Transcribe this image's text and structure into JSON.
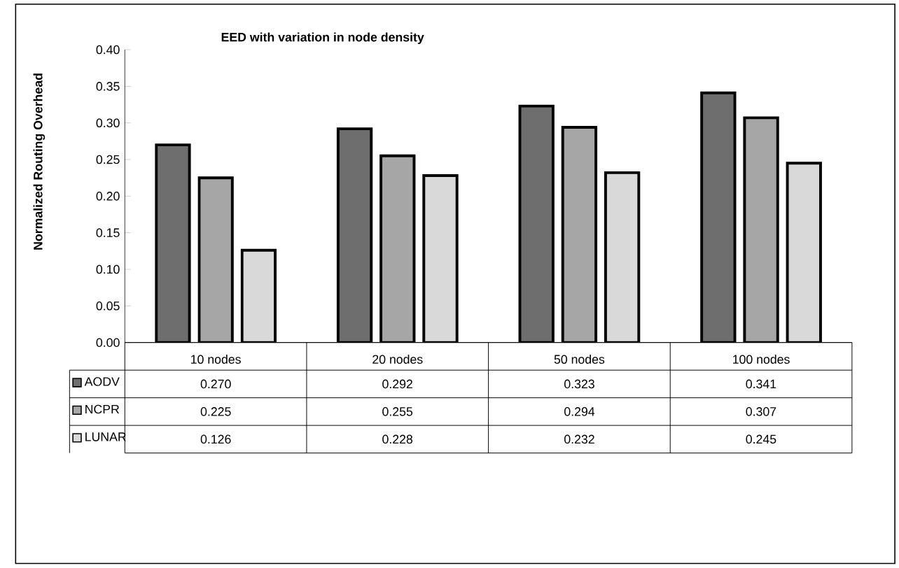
{
  "chart_data": {
    "type": "bar",
    "title": "EED with variation in node density",
    "ylabel": "Normalized Routing Overhead",
    "legend": "bottom left",
    "categories": [
      "10 nodes",
      "20 nodes",
      "50 nodes",
      "100 nodes"
    ],
    "ylim": [
      0,
      0.4
    ],
    "yticks": [
      {
        "value": 0,
        "label": "0.00"
      },
      {
        "value": 0.05,
        "label": "0.05"
      },
      {
        "value": 0.1,
        "label": "0.10"
      },
      {
        "value": 0.15,
        "label": "0.15"
      },
      {
        "value": 0.2,
        "label": "0.20"
      },
      {
        "value": 0.25,
        "label": "0.25"
      },
      {
        "value": 0.3,
        "label": "0.30"
      },
      {
        "value": 0.35,
        "label": "0.35"
      },
      {
        "value": 0.4,
        "label": "0.40"
      }
    ],
    "series": [
      {
        "name": "AODV",
        "color": "#6e6e6e",
        "values": [
          0.27,
          0.292,
          0.323,
          0.341
        ],
        "value_labels": [
          "0.270",
          "0.292",
          "0.323",
          "0.341"
        ]
      },
      {
        "name": "NCPR",
        "color": "#a6a6a6",
        "values": [
          0.225,
          0.255,
          0.294,
          0.307
        ],
        "value_labels": [
          "0.225",
          "0.255",
          "0.294",
          "0.307"
        ]
      },
      {
        "name": "LUNAR",
        "color": "#d9d9d9",
        "values": [
          0.126,
          0.228,
          0.232,
          0.245
        ],
        "value_labels": [
          "0.126",
          "0.228",
          "0.232",
          "0.245"
        ]
      }
    ]
  }
}
